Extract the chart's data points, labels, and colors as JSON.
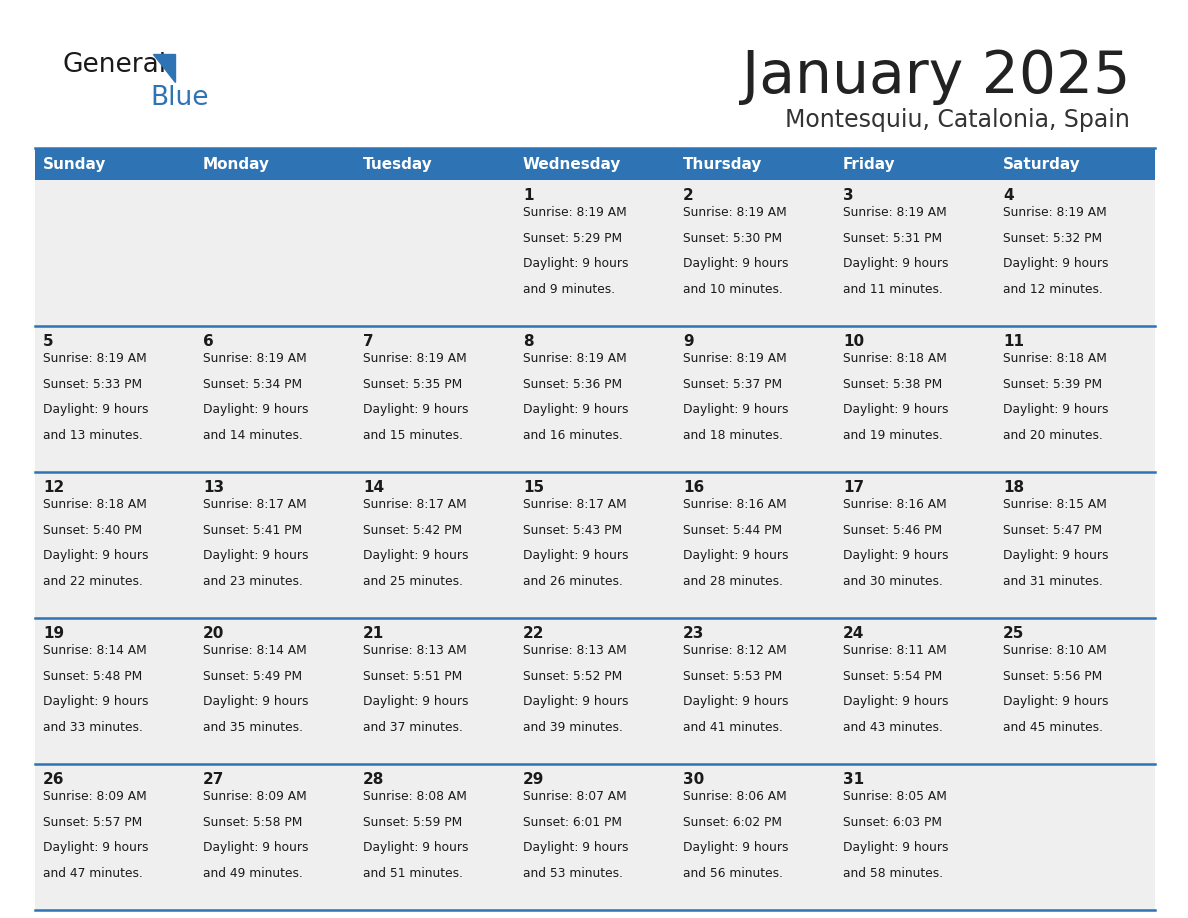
{
  "title": "January 2025",
  "subtitle": "Montesquiu, Catalonia, Spain",
  "days_of_week": [
    "Sunday",
    "Monday",
    "Tuesday",
    "Wednesday",
    "Thursday",
    "Friday",
    "Saturday"
  ],
  "header_bg": "#2E74B5",
  "header_text": "#FFFFFF",
  "cell_bg_light": "#EFEFEF",
  "row_line_color": "#2E74B5",
  "text_color": "#1a1a1a",
  "title_color": "#222222",
  "subtitle_color": "#333333",
  "calendar": [
    [
      {
        "day": "",
        "sunrise": "",
        "sunset": "",
        "daylight": ""
      },
      {
        "day": "",
        "sunrise": "",
        "sunset": "",
        "daylight": ""
      },
      {
        "day": "",
        "sunrise": "",
        "sunset": "",
        "daylight": ""
      },
      {
        "day": "1",
        "sunrise": "8:19 AM",
        "sunset": "5:29 PM",
        "daylight": "9 hours and 9 minutes."
      },
      {
        "day": "2",
        "sunrise": "8:19 AM",
        "sunset": "5:30 PM",
        "daylight": "9 hours and 10 minutes."
      },
      {
        "day": "3",
        "sunrise": "8:19 AM",
        "sunset": "5:31 PM",
        "daylight": "9 hours and 11 minutes."
      },
      {
        "day": "4",
        "sunrise": "8:19 AM",
        "sunset": "5:32 PM",
        "daylight": "9 hours and 12 minutes."
      }
    ],
    [
      {
        "day": "5",
        "sunrise": "8:19 AM",
        "sunset": "5:33 PM",
        "daylight": "9 hours and 13 minutes."
      },
      {
        "day": "6",
        "sunrise": "8:19 AM",
        "sunset": "5:34 PM",
        "daylight": "9 hours and 14 minutes."
      },
      {
        "day": "7",
        "sunrise": "8:19 AM",
        "sunset": "5:35 PM",
        "daylight": "9 hours and 15 minutes."
      },
      {
        "day": "8",
        "sunrise": "8:19 AM",
        "sunset": "5:36 PM",
        "daylight": "9 hours and 16 minutes."
      },
      {
        "day": "9",
        "sunrise": "8:19 AM",
        "sunset": "5:37 PM",
        "daylight": "9 hours and 18 minutes."
      },
      {
        "day": "10",
        "sunrise": "8:18 AM",
        "sunset": "5:38 PM",
        "daylight": "9 hours and 19 minutes."
      },
      {
        "day": "11",
        "sunrise": "8:18 AM",
        "sunset": "5:39 PM",
        "daylight": "9 hours and 20 minutes."
      }
    ],
    [
      {
        "day": "12",
        "sunrise": "8:18 AM",
        "sunset": "5:40 PM",
        "daylight": "9 hours and 22 minutes."
      },
      {
        "day": "13",
        "sunrise": "8:17 AM",
        "sunset": "5:41 PM",
        "daylight": "9 hours and 23 minutes."
      },
      {
        "day": "14",
        "sunrise": "8:17 AM",
        "sunset": "5:42 PM",
        "daylight": "9 hours and 25 minutes."
      },
      {
        "day": "15",
        "sunrise": "8:17 AM",
        "sunset": "5:43 PM",
        "daylight": "9 hours and 26 minutes."
      },
      {
        "day": "16",
        "sunrise": "8:16 AM",
        "sunset": "5:44 PM",
        "daylight": "9 hours and 28 minutes."
      },
      {
        "day": "17",
        "sunrise": "8:16 AM",
        "sunset": "5:46 PM",
        "daylight": "9 hours and 30 minutes."
      },
      {
        "day": "18",
        "sunrise": "8:15 AM",
        "sunset": "5:47 PM",
        "daylight": "9 hours and 31 minutes."
      }
    ],
    [
      {
        "day": "19",
        "sunrise": "8:14 AM",
        "sunset": "5:48 PM",
        "daylight": "9 hours and 33 minutes."
      },
      {
        "day": "20",
        "sunrise": "8:14 AM",
        "sunset": "5:49 PM",
        "daylight": "9 hours and 35 minutes."
      },
      {
        "day": "21",
        "sunrise": "8:13 AM",
        "sunset": "5:51 PM",
        "daylight": "9 hours and 37 minutes."
      },
      {
        "day": "22",
        "sunrise": "8:13 AM",
        "sunset": "5:52 PM",
        "daylight": "9 hours and 39 minutes."
      },
      {
        "day": "23",
        "sunrise": "8:12 AM",
        "sunset": "5:53 PM",
        "daylight": "9 hours and 41 minutes."
      },
      {
        "day": "24",
        "sunrise": "8:11 AM",
        "sunset": "5:54 PM",
        "daylight": "9 hours and 43 minutes."
      },
      {
        "day": "25",
        "sunrise": "8:10 AM",
        "sunset": "5:56 PM",
        "daylight": "9 hours and 45 minutes."
      }
    ],
    [
      {
        "day": "26",
        "sunrise": "8:09 AM",
        "sunset": "5:57 PM",
        "daylight": "9 hours and 47 minutes."
      },
      {
        "day": "27",
        "sunrise": "8:09 AM",
        "sunset": "5:58 PM",
        "daylight": "9 hours and 49 minutes."
      },
      {
        "day": "28",
        "sunrise": "8:08 AM",
        "sunset": "5:59 PM",
        "daylight": "9 hours and 51 minutes."
      },
      {
        "day": "29",
        "sunrise": "8:07 AM",
        "sunset": "6:01 PM",
        "daylight": "9 hours and 53 minutes."
      },
      {
        "day": "30",
        "sunrise": "8:06 AM",
        "sunset": "6:02 PM",
        "daylight": "9 hours and 56 minutes."
      },
      {
        "day": "31",
        "sunrise": "8:05 AM",
        "sunset": "6:03 PM",
        "daylight": "9 hours and 58 minutes."
      },
      {
        "day": "",
        "sunrise": "",
        "sunset": "",
        "daylight": ""
      }
    ]
  ]
}
